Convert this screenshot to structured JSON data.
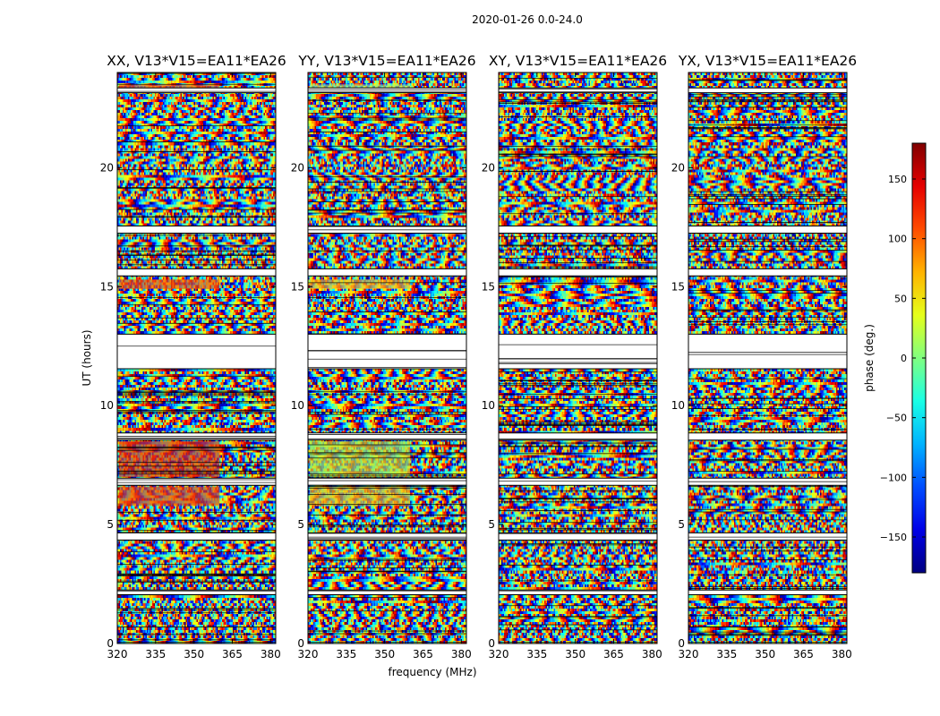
{
  "figure": {
    "suptitle": "2020-01-26 0.0-24.0",
    "xlabel": "frequency (MHz)",
    "ylabel": "UT (hours)"
  },
  "colormap": "jet",
  "chart_data": {
    "type": "heatmap",
    "title": "2020-01-26 0.0-24.0",
    "xlabel": "frequency (MHz)",
    "ylabel": "UT (hours)",
    "xlim": [
      320,
      382
    ],
    "ylim": [
      0,
      24
    ],
    "x_ticks": [
      320,
      335,
      350,
      365,
      380
    ],
    "y_ticks": [
      0,
      5,
      10,
      15,
      20
    ],
    "panels": [
      {
        "name": "XX",
        "title": "XX, V13*V15=EA11*EA26"
      },
      {
        "name": "YY",
        "title": "YY, V13*V15=EA11*EA26"
      },
      {
        "name": "XY",
        "title": "XY, V13*V15=EA11*EA26"
      },
      {
        "name": "YX",
        "title": "YX, V13*V15=EA11*EA26"
      }
    ],
    "colorbar": {
      "label": "phase (deg.)",
      "vmin": -180,
      "vmax": 180,
      "ticks": [
        -150,
        -100,
        -50,
        0,
        50,
        100,
        150
      ],
      "tick_labels": [
        "−150",
        "−100",
        "−50",
        "0",
        "50",
        "100",
        "150"
      ]
    },
    "gaps_hours": [
      [
        11.55,
        13.0
      ],
      [
        8.55,
        8.85
      ],
      [
        6.65,
        6.95
      ],
      [
        4.35,
        4.65
      ],
      [
        2.05,
        2.25
      ],
      [
        15.45,
        15.75
      ],
      [
        17.25,
        17.55
      ],
      [
        23.15,
        23.35
      ]
    ]
  }
}
